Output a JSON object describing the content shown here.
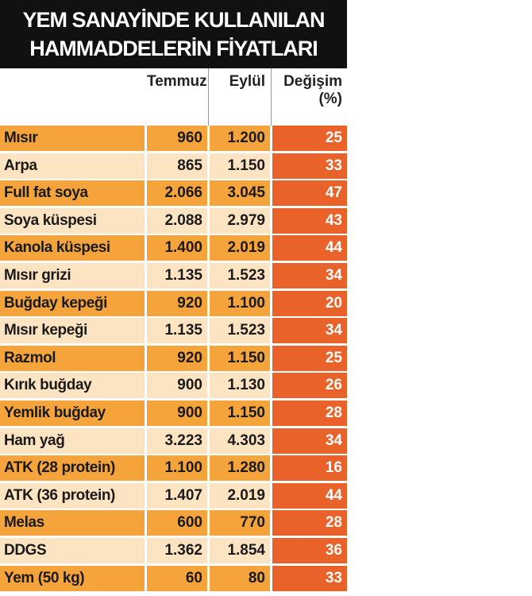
{
  "title_lines": [
    "YEM SANAYİNDE KULLANILAN",
    "HAMMADDELERİN FİYATLARI"
  ],
  "colors": {
    "title_bg": "#111111",
    "row_odd": "#f4a43a",
    "row_even": "#fce3c2",
    "change_column": "#e8622a"
  },
  "chart_data": {
    "type": "table",
    "columns": [
      "Temmuz",
      "Eylül",
      "Değişim (%)"
    ],
    "change_header": {
      "line1": "Değişim",
      "line2": "(%)"
    },
    "rows": [
      {
        "name": "Mısır",
        "temmuz": "960",
        "eylul": "1.200",
        "degisim": "25"
      },
      {
        "name": "Arpa",
        "temmuz": "865",
        "eylul": "1.150",
        "degisim": "33"
      },
      {
        "name": "Full fat soya",
        "temmuz": "2.066",
        "eylul": "3.045",
        "degisim": "47"
      },
      {
        "name": "Soya küspesi",
        "temmuz": "2.088",
        "eylul": "2.979",
        "degisim": "43"
      },
      {
        "name": "Kanola küspesi",
        "temmuz": "1.400",
        "eylul": "2.019",
        "degisim": "44"
      },
      {
        "name": "Mısır grizi",
        "temmuz": "1.135",
        "eylul": "1.523",
        "degisim": "34"
      },
      {
        "name": "Buğday kepeği",
        "temmuz": "920",
        "eylul": "1.100",
        "degisim": "20"
      },
      {
        "name": "Mısır kepeği",
        "temmuz": "1.135",
        "eylul": "1.523",
        "degisim": "34"
      },
      {
        "name": "Razmol",
        "temmuz": "920",
        "eylul": "1.150",
        "degisim": "25"
      },
      {
        "name": "Kırık buğday",
        "temmuz": "900",
        "eylul": "1.130",
        "degisim": "26"
      },
      {
        "name": "Yemlik buğday",
        "temmuz": "900",
        "eylul": "1.150",
        "degisim": "28"
      },
      {
        "name": "Ham yağ",
        "temmuz": "3.223",
        "eylul": "4.303",
        "degisim": "34"
      },
      {
        "name": "ATK (28 protein)",
        "temmuz": "1.100",
        "eylul": "1.280",
        "degisim": "16"
      },
      {
        "name": "ATK (36 protein)",
        "temmuz": "1.407",
        "eylul": "2.019",
        "degisim": "44"
      },
      {
        "name": "Melas",
        "temmuz": "600",
        "eylul": "770",
        "degisim": "28"
      },
      {
        "name": "DDGS",
        "temmuz": "1.362",
        "eylul": "1.854",
        "degisim": "36"
      },
      {
        "name": "Yem (50 kg)",
        "temmuz": "60",
        "eylul": "80",
        "degisim": "33"
      }
    ]
  }
}
